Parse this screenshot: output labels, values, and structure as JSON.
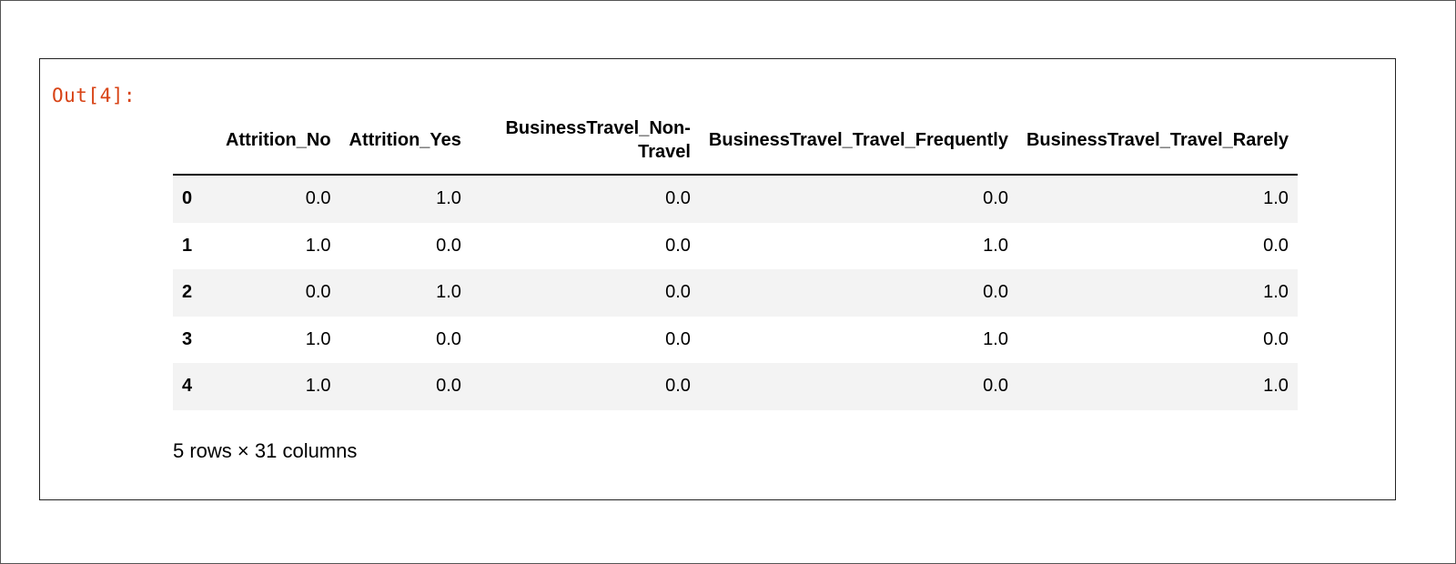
{
  "output_prompt": "Out[4]:",
  "table": {
    "columns": [
      "Attrition_No",
      "Attrition_Yes",
      "BusinessTravel_Non-Travel",
      "BusinessTravel_Travel_Frequently",
      "BusinessTravel_Travel_Rarely"
    ],
    "rows": [
      {
        "index": "0",
        "values": [
          "0.0",
          "1.0",
          "0.0",
          "0.0",
          "1.0"
        ]
      },
      {
        "index": "1",
        "values": [
          "1.0",
          "0.0",
          "0.0",
          "1.0",
          "0.0"
        ]
      },
      {
        "index": "2",
        "values": [
          "0.0",
          "1.0",
          "0.0",
          "0.0",
          "1.0"
        ]
      },
      {
        "index": "3",
        "values": [
          "1.0",
          "0.0",
          "0.0",
          "1.0",
          "0.0"
        ]
      },
      {
        "index": "4",
        "values": [
          "1.0",
          "0.0",
          "0.0",
          "0.0",
          "1.0"
        ]
      }
    ]
  },
  "footer": "5 rows × 31 columns"
}
